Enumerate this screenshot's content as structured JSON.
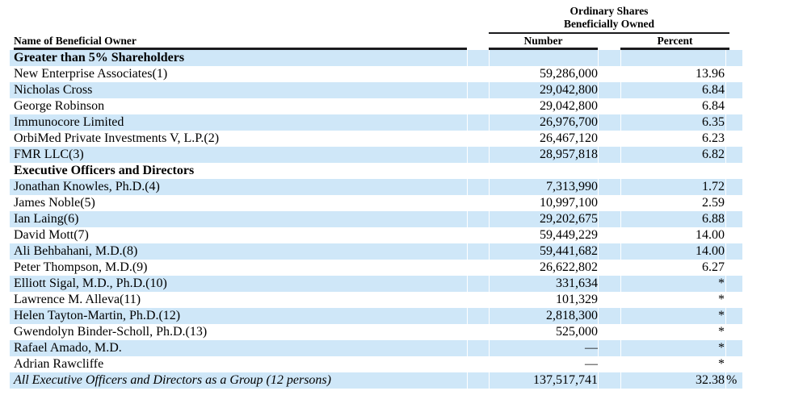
{
  "document": {
    "group_header": {
      "line1": "Ordinary Shares",
      "line2": "Beneficially Owned"
    },
    "columns": {
      "name": "Name of Beneficial Owner",
      "number": "Number",
      "percent": "Percent"
    },
    "colors": {
      "row_highlight": "#cfe7f8",
      "rule": "#1b1b1d",
      "text": "#000000"
    },
    "rows": [
      {
        "type": "section",
        "name": "Greater than 5% Shareholders",
        "number": "",
        "percent": "",
        "suffix": ""
      },
      {
        "type": "data",
        "name": "New Enterprise Associates(1)",
        "number": "59,286,000",
        "percent": "13.96",
        "suffix": ""
      },
      {
        "type": "data",
        "name": "Nicholas Cross",
        "number": "29,042,800",
        "percent": "6.84",
        "suffix": ""
      },
      {
        "type": "data",
        "name": "George Robinson",
        "number": "29,042,800",
        "percent": "6.84",
        "suffix": ""
      },
      {
        "type": "data",
        "name": "Immunocore Limited",
        "number": "26,976,700",
        "percent": "6.35",
        "suffix": ""
      },
      {
        "type": "data",
        "name": "OrbiMed Private Investments V, L.P.(2)",
        "number": "26,467,120",
        "percent": "6.23",
        "suffix": ""
      },
      {
        "type": "data",
        "name": "FMR LLC(3)",
        "number": "28,957,818",
        "percent": "6.82",
        "suffix": ""
      },
      {
        "type": "section",
        "name": "Executive Officers and Directors",
        "number": "",
        "percent": "",
        "suffix": ""
      },
      {
        "type": "data",
        "name": "Jonathan Knowles, Ph.D.(4)",
        "number": "7,313,990",
        "percent": "1.72",
        "suffix": ""
      },
      {
        "type": "data",
        "name": "James Noble(5)",
        "number": "10,997,100",
        "percent": "2.59",
        "suffix": ""
      },
      {
        "type": "data",
        "name": "Ian Laing(6)",
        "number": "29,202,675",
        "percent": "6.88",
        "suffix": ""
      },
      {
        "type": "data",
        "name": "David Mott(7)",
        "number": "59,449,229",
        "percent": "14.00",
        "suffix": ""
      },
      {
        "type": "data",
        "name": "Ali Behbahani, M.D.(8)",
        "number": "59,441,682",
        "percent": "14.00",
        "suffix": ""
      },
      {
        "type": "data",
        "name": "Peter Thompson, M.D.(9)",
        "number": "26,622,802",
        "percent": "6.27",
        "suffix": ""
      },
      {
        "type": "data",
        "name": "Elliott Sigal, M.D., Ph.D.(10)",
        "number": "331,634",
        "percent": "*",
        "suffix": ""
      },
      {
        "type": "data",
        "name": "Lawrence M. Alleva(11)",
        "number": "101,329",
        "percent": "*",
        "suffix": ""
      },
      {
        "type": "data",
        "name": "Helen Tayton-Martin, Ph.D.(12)",
        "number": "2,818,300",
        "percent": "*",
        "suffix": ""
      },
      {
        "type": "data",
        "name": "Gwendolyn Binder-Scholl, Ph.D.(13)",
        "number": "525,000",
        "percent": "*",
        "suffix": ""
      },
      {
        "type": "data",
        "name": "Rafael Amado, M.D.",
        "number": "—",
        "percent": "*",
        "suffix": ""
      },
      {
        "type": "data",
        "name": "Adrian Rawcliffe",
        "number": "—",
        "percent": "*",
        "suffix": ""
      },
      {
        "type": "total",
        "name": "All Executive Officers and Directors as a Group (12 persons)",
        "number": "137,517,741",
        "percent": "32.38",
        "suffix": "%"
      }
    ]
  }
}
